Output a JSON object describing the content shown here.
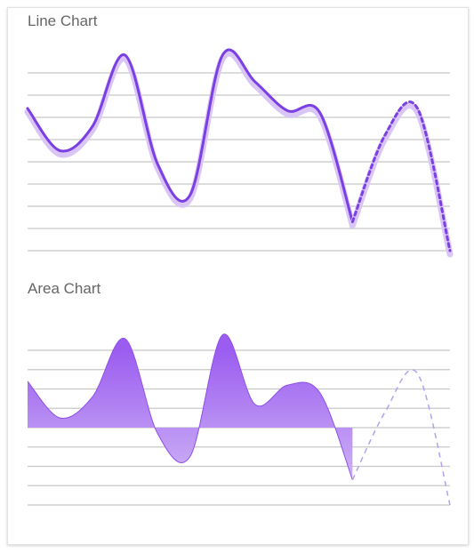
{
  "charts": {
    "line_title": "Line Chart",
    "area_title": "Area Chart"
  },
  "colors": {
    "line": "#7b3fe4",
    "line_shadow": "#d9c6f7",
    "area_top": "#9b5df0",
    "area_bottom": "#d7c3f7",
    "grid": "#c8c8c8",
    "dashed_area": "#b7a0ee"
  },
  "chart_data": [
    {
      "type": "line",
      "title": "Line Chart",
      "grid": true,
      "ylim": [
        0,
        8
      ],
      "x": [
        0,
        1,
        2,
        3,
        4,
        5,
        6,
        7,
        8,
        9,
        10,
        11,
        12,
        13
      ],
      "series": [
        {
          "values": [
            6.4,
            4.5,
            5.6,
            8.8,
            3.9,
            2.5,
            8.8,
            7.6,
            6.3,
            6.2,
            1.3,
            null,
            null,
            null
          ],
          "style": "solid"
        },
        {
          "values": [
            null,
            null,
            null,
            null,
            null,
            null,
            null,
            null,
            null,
            null,
            1.3,
            5.2,
            6.4,
            0.0
          ],
          "style": "dotted"
        }
      ]
    },
    {
      "type": "area",
      "title": "Area Chart",
      "grid": true,
      "ylim": [
        0,
        8
      ],
      "baseline": 4,
      "x": [
        0,
        1,
        2,
        3,
        4,
        5,
        6,
        7,
        8,
        9,
        10,
        11,
        12,
        13
      ],
      "series": [
        {
          "values": [
            6.4,
            4.5,
            5.6,
            8.6,
            3.7,
            2.5,
            8.8,
            5.2,
            6.2,
            5.8,
            1.3,
            null,
            null,
            null
          ],
          "style": "solid"
        },
        {
          "values": [
            null,
            null,
            null,
            null,
            null,
            null,
            null,
            null,
            null,
            null,
            1.3,
            4.8,
            6.8,
            0.0
          ],
          "style": "dashed"
        }
      ]
    }
  ]
}
